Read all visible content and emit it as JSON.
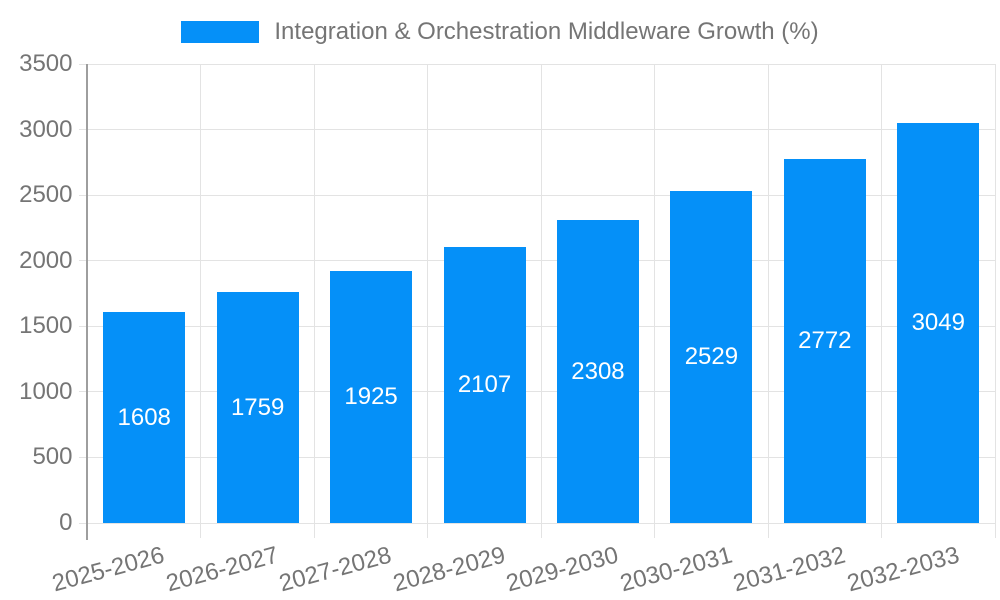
{
  "chart_data": {
    "type": "bar",
    "title": "Integration & Orchestration Middleware Growth (%)",
    "legend": {
      "position": "top",
      "entries": [
        "Integration & Orchestration Middleware Growth (%)"
      ]
    },
    "categories": [
      "2025-2026",
      "2026-2027",
      "2027-2028",
      "2028-2029",
      "2029-2030",
      "2030-2031",
      "2031-2032",
      "2032-2033"
    ],
    "series": [
      {
        "name": "Integration & Orchestration Middleware Growth (%)",
        "values": [
          1608,
          1759,
          1925,
          2107,
          2308,
          2529,
          2772,
          3049
        ]
      }
    ],
    "values": [
      1608,
      1759,
      1925,
      2107,
      2308,
      2529,
      2772,
      3049
    ],
    "data_labels_shown": true,
    "xlabel": "",
    "ylabel": "",
    "ylim": [
      0,
      3500
    ],
    "yticks": [
      0,
      500,
      1000,
      1500,
      2000,
      2500,
      3000,
      3500
    ],
    "grid": "both",
    "colors": {
      "bar": "#0590f8",
      "bar_label_text": "#ffffff",
      "axis_text": "#757575",
      "gridline": "#e3e3e3",
      "axis_line": "#9e9e9e",
      "background": "#ffffff"
    }
  }
}
